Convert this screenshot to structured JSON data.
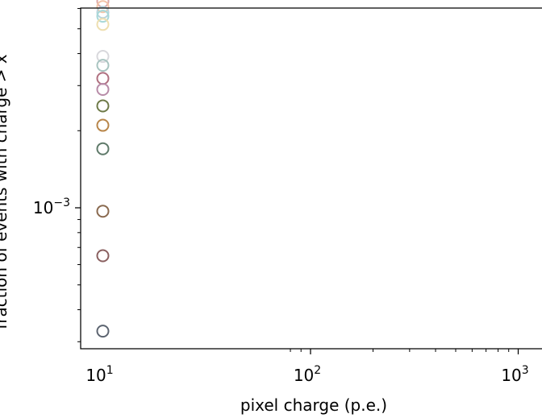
{
  "chart_data": {
    "type": "scatter",
    "title": "",
    "xlabel": "pixel charge (p.e.)",
    "ylabel": "fraction of events with charge > x",
    "x_scale": "log",
    "y_scale": "log",
    "xlim": [
      8,
      1150
    ],
    "ylim": [
      0.00026,
      0.00713
    ],
    "x_tick_labels": [
      {
        "base": "10",
        "exp": "1",
        "value": 10
      },
      {
        "base": "10",
        "exp": "2",
        "value": 100
      },
      {
        "base": "10",
        "exp": "3",
        "value": 1000
      }
    ],
    "y_tick_labels": [
      {
        "base": "10",
        "exp": "−3",
        "value": 0.001
      }
    ],
    "grid": false,
    "legend": "none",
    "points": [
      {
        "x": 10,
        "y": 0.0064,
        "color": "#dca8a8"
      },
      {
        "x": 10,
        "y": 0.0061,
        "color": "#f2c4a8"
      },
      {
        "x": 10,
        "y": 0.0058,
        "color": "#b8d4dc"
      },
      {
        "x": 10,
        "y": 0.0056,
        "color": "#a8d8d8"
      },
      {
        "x": 10,
        "y": 0.0052,
        "color": "#eedfb0"
      },
      {
        "x": 10,
        "y": 0.0039,
        "color": "#d8d8dc"
      },
      {
        "x": 10,
        "y": 0.0036,
        "color": "#a8c4c0"
      },
      {
        "x": 10,
        "y": 0.0032,
        "color": "#b07080"
      },
      {
        "x": 10,
        "y": 0.0029,
        "color": "#b88ca8"
      },
      {
        "x": 10,
        "y": 0.0025,
        "color": "#6e7a48"
      },
      {
        "x": 10,
        "y": 0.0021,
        "color": "#b8864a"
      },
      {
        "x": 10,
        "y": 0.0017,
        "color": "#5f7a6a"
      },
      {
        "x": 10,
        "y": 0.00097,
        "color": "#8a6a50"
      },
      {
        "x": 10,
        "y": 0.00065,
        "color": "#8a6060"
      },
      {
        "x": 10,
        "y": 0.00033,
        "color": "#5c6470"
      }
    ]
  }
}
